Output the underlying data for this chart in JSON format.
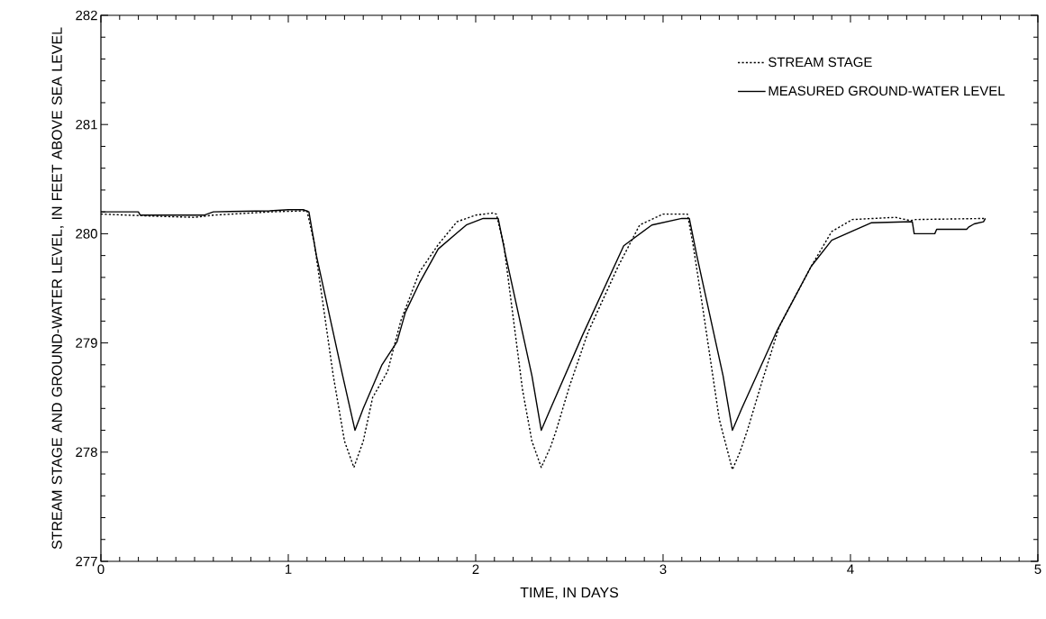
{
  "chart_data": {
    "type": "line",
    "xlabel": "TIME, IN DAYS",
    "ylabel": "STREAM STAGE AND GROUND-WATER LEVEL, IN FEET ABOVE SEA LEVEL",
    "xlim": [
      0,
      5
    ],
    "ylim": [
      277,
      282
    ],
    "xticks": [
      0,
      1,
      2,
      3,
      4,
      5
    ],
    "yticks": [
      277,
      278,
      279,
      280,
      281,
      282
    ],
    "legend": "top right",
    "grid": false,
    "series": [
      {
        "name": "STREAM STAGE",
        "color": "#000000",
        "line_style": "dotted",
        "x": [
          0,
          0.3,
          0.5,
          0.6,
          0.9,
          1.1,
          1.14,
          1.24,
          1.3,
          1.35,
          1.4,
          1.45,
          1.53,
          1.6,
          1.7,
          1.8,
          1.9,
          2.0,
          2.09,
          2.11,
          2.15,
          2.25,
          2.3,
          2.35,
          2.4,
          2.43,
          2.5,
          2.6,
          2.76,
          2.875,
          3.0,
          3.13,
          3.16,
          3.21,
          3.3,
          3.37,
          3.41,
          3.45,
          3.52,
          3.62,
          3.79,
          3.9,
          4.01,
          4.24,
          4.32,
          4.35,
          4.72
        ],
        "values": [
          280.18,
          280.16,
          280.15,
          280.17,
          280.2,
          280.21,
          279.9,
          278.7,
          278.1,
          277.86,
          278.1,
          278.5,
          278.74,
          279.2,
          279.65,
          279.9,
          280.11,
          280.17,
          280.19,
          280.18,
          279.9,
          278.57,
          278.1,
          277.86,
          278.05,
          278.2,
          278.6,
          279.1,
          279.7,
          280.08,
          280.18,
          280.18,
          279.9,
          279.34,
          278.3,
          277.84,
          278.0,
          278.2,
          278.6,
          279.15,
          279.7,
          280.02,
          280.13,
          280.15,
          280.12,
          280.13,
          280.14
        ]
      },
      {
        "name": "MEASURED GROUND-WATER LEVEL",
        "color": "#000000",
        "line_style": "solid",
        "x": [
          0,
          0.2,
          0.21,
          0.55,
          0.6,
          0.9,
          1.0,
          1.08,
          1.11,
          1.15,
          1.29,
          1.356,
          1.4,
          1.5,
          1.58,
          1.625,
          1.7,
          1.8,
          1.95,
          2.04,
          2.12,
          2.16,
          2.3,
          2.35,
          2.4,
          2.57,
          2.79,
          2.94,
          3.1,
          3.14,
          3.18,
          3.32,
          3.37,
          3.42,
          3.61,
          3.79,
          3.9,
          4.11,
          4.33,
          4.34,
          4.45,
          4.46,
          4.62,
          4.63,
          4.66,
          4.71,
          4.72
        ],
        "values": [
          280.2,
          280.2,
          280.17,
          280.17,
          280.2,
          280.21,
          280.22,
          280.22,
          280.2,
          279.8,
          278.7,
          278.2,
          278.4,
          278.8,
          279.01,
          279.28,
          279.55,
          279.86,
          280.08,
          280.14,
          280.14,
          279.8,
          278.7,
          278.2,
          278.4,
          279.07,
          279.89,
          280.08,
          280.14,
          280.14,
          279.8,
          278.7,
          278.2,
          278.4,
          279.12,
          279.7,
          279.94,
          280.1,
          280.11,
          280.0,
          280.0,
          280.04,
          280.04,
          280.06,
          280.09,
          280.11,
          280.14
        ]
      }
    ]
  }
}
